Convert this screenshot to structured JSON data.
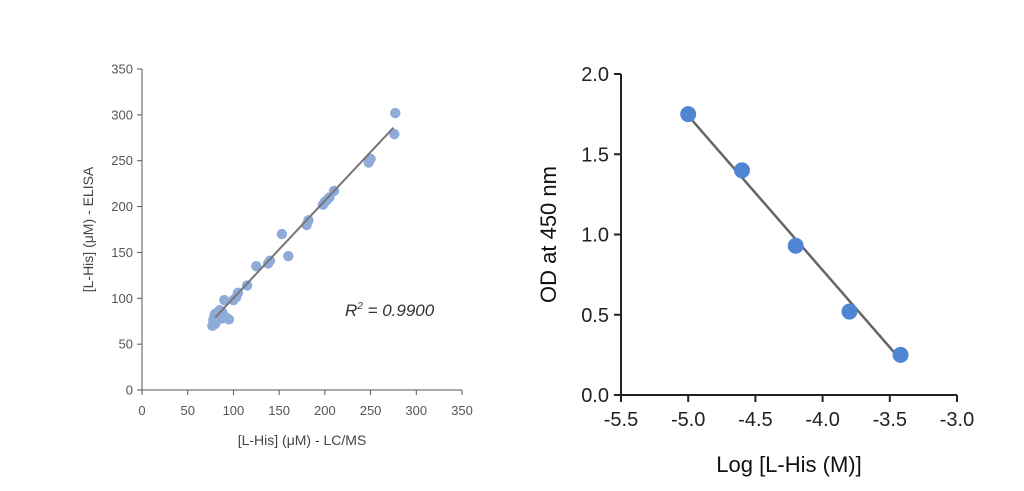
{
  "chart_data": [
    {
      "type": "scatter",
      "title": "",
      "xlabel": "[L-His] (μM) - LC/MS",
      "ylabel": "[L-His] (μM) - ELISA",
      "xlim": [
        0,
        350
      ],
      "ylim": [
        0,
        350
      ],
      "xticks": [
        0,
        50,
        100,
        150,
        200,
        250,
        300,
        350
      ],
      "yticks": [
        0,
        50,
        100,
        150,
        200,
        250,
        300,
        350
      ],
      "annotation": {
        "prefix": "R",
        "sup": "2",
        "suffix": " = 0.9900"
      },
      "fit_line": {
        "x": [
          80,
          275
        ],
        "y": [
          79,
          286
        ]
      },
      "points_x": [
        77,
        78,
        79,
        80,
        80,
        81,
        82,
        83,
        84,
        85,
        86,
        87,
        88,
        89,
        90,
        92,
        95,
        100,
        103,
        105,
        115,
        125,
        138,
        140,
        153,
        160,
        180,
        182,
        198,
        200,
        202,
        205,
        210,
        248,
        250,
        276,
        277
      ],
      "points_y": [
        70,
        76,
        80,
        72,
        83,
        75,
        79,
        85,
        80,
        87,
        82,
        78,
        84,
        80,
        98,
        79,
        77,
        98,
        101,
        106,
        114,
        135,
        138,
        141,
        170,
        146,
        180,
        185,
        202,
        205,
        207,
        210,
        217,
        248,
        252,
        279,
        302
      ],
      "color": "#8fabd9"
    },
    {
      "type": "scatter",
      "title": "",
      "xlabel": "Log [L-His (M)]",
      "ylabel": "OD at 450 nm",
      "xlim": [
        -5.5,
        -3.0
      ],
      "ylim": [
        0.0,
        2.0
      ],
      "xticks": [
        "-5.5",
        "-5.0",
        "-4.5",
        "-4.0",
        "-3.5",
        "-3.0"
      ],
      "yticks": [
        "0.0",
        "0.5",
        "1.0",
        "1.5",
        "2.0"
      ],
      "fit_line": {
        "x": [
          -5.0,
          -3.42
        ],
        "y": [
          1.74,
          0.22
        ]
      },
      "points_x": [
        -5.0,
        -4.6,
        -4.2,
        -3.8,
        -3.42
      ],
      "points_y": [
        1.75,
        1.4,
        0.93,
        0.52,
        0.25
      ],
      "color": "#4f86d4"
    }
  ]
}
